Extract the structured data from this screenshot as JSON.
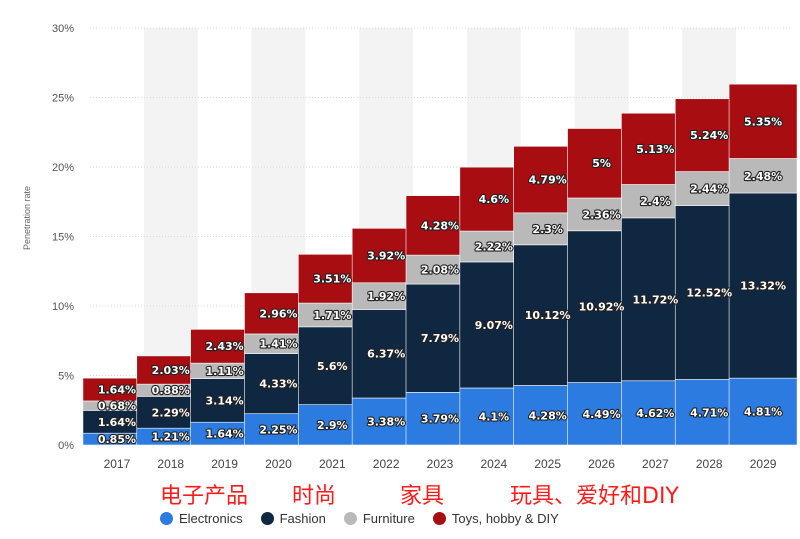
{
  "chart_data": {
    "type": "bar",
    "stacked": true,
    "title": "",
    "xlabel": "",
    "ylabel": "Penetration rate",
    "ylim": [
      0,
      30
    ],
    "yticks": [
      "0%",
      "5%",
      "10%",
      "15%",
      "20%",
      "25%",
      "30%"
    ],
    "grid": true,
    "legend_position": "bottom",
    "categories": [
      "2017",
      "2018",
      "2019",
      "2020",
      "2021",
      "2022",
      "2023",
      "2024",
      "2025",
      "2026",
      "2027",
      "2028",
      "2029"
    ],
    "series": [
      {
        "name": "Electronics",
        "color": "#2b7be0",
        "values": [
          0.85,
          1.21,
          1.64,
          2.25,
          2.9,
          3.38,
          3.79,
          4.1,
          4.28,
          4.49,
          4.62,
          4.71,
          4.81
        ],
        "labels": [
          "0.85%",
          "1.21%",
          "1.64%",
          "2.25%",
          "2.9%",
          "3.38%",
          "3.79%",
          "4.1%",
          "4.28%",
          "4.49%",
          "4.62%",
          "4.71%",
          "4.81%"
        ]
      },
      {
        "name": "Fashion",
        "color": "#102742",
        "values": [
          1.64,
          2.29,
          3.14,
          4.33,
          5.6,
          6.37,
          7.79,
          9.07,
          10.12,
          10.92,
          11.72,
          12.52,
          13.32
        ],
        "labels": [
          "1.64%",
          "2.29%",
          "3.14%",
          "4.33%",
          "5.6%",
          "6.37%",
          "7.79%",
          "9.07%",
          "10.12%",
          "10.92%",
          "11.72%",
          "12.52%",
          "13.32%"
        ]
      },
      {
        "name": "Furniture",
        "color": "#b9b9b9",
        "values": [
          0.68,
          0.88,
          1.11,
          1.41,
          1.71,
          1.92,
          2.08,
          2.22,
          2.3,
          2.36,
          2.4,
          2.44,
          2.48
        ],
        "labels": [
          "0.68%",
          "0.88%",
          "1.11%",
          "1.41%",
          "1.71%",
          "1.92%",
          "2.08%",
          "2.22%",
          "2.3%",
          "2.36%",
          "2.4%",
          "2.44%",
          "2.48%"
        ]
      },
      {
        "name": "Toys, hobby & DIY",
        "color": "#a80d12",
        "values": [
          1.64,
          2.03,
          2.43,
          2.96,
          3.51,
          3.92,
          4.28,
          4.6,
          4.79,
          5,
          5.13,
          5.24,
          5.35
        ],
        "labels": [
          "1.64%",
          "2.03%",
          "2.43%",
          "2.96%",
          "3.51%",
          "3.92%",
          "4.28%",
          "4.6%",
          "4.79%",
          "5%",
          "5.13%",
          "5.24%",
          "5.35%"
        ]
      }
    ]
  },
  "annotations": [
    {
      "id": "electronics",
      "text": "电子产品"
    },
    {
      "id": "fashion",
      "text": "时尚"
    },
    {
      "id": "furniture",
      "text": "家具"
    },
    {
      "id": "toys",
      "text": "玩具、爱好和DIY"
    }
  ],
  "colors": {
    "annotation": "#ff1a1a",
    "grid": "#d9d9d9",
    "band": "#f3f3f3"
  }
}
